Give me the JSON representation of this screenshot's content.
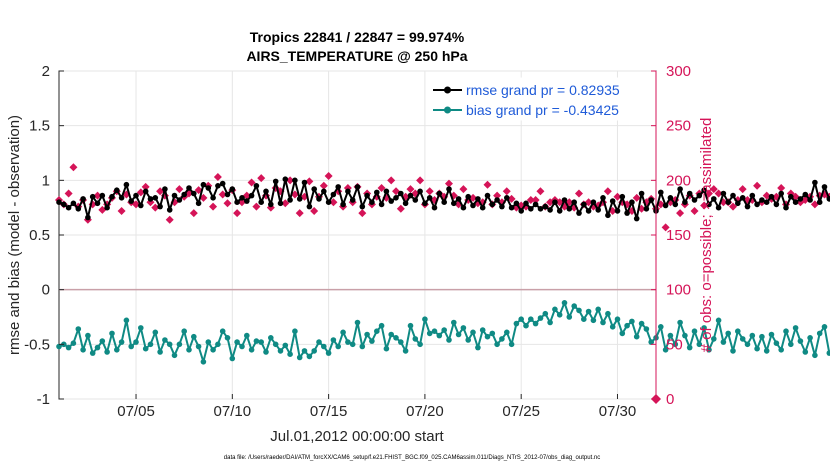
{
  "chart_data": {
    "type": "line",
    "title_line1": "Tropics 22841 / 22847 = 99.974%",
    "title_line2": "AIRS_TEMPERATURE @ 250 hPa",
    "xlabel": "Jul.01,2012 00:00:00 start",
    "ylabel_left": "rmse and bias (model - observation)",
    "ylabel_right": "# of obs: o=possible; ×=assimilated",
    "footer": "data file: /Users/raeder/DAI/ATM_forcXX/CAM6_setup/f.e21.FHIST_BGC.f09_025.CAM6assim.011/Diags_NTrS_2012-07/obs_diag_output.nc",
    "x_range_days": [
      1.0,
      32.0
    ],
    "ylim_left": [
      -1,
      2
    ],
    "ylim_right": [
      0,
      300
    ],
    "yticks_left": [
      "-1",
      "-0.5",
      "0",
      "0.5",
      "1",
      "1.5",
      "2"
    ],
    "yticks_right": [
      "0",
      "50",
      "100",
      "150",
      "200",
      "250",
      "300"
    ],
    "xticks": [
      {
        "day": 5,
        "label": "07/05"
      },
      {
        "day": 10,
        "label": "07/10"
      },
      {
        "day": 15,
        "label": "07/15"
      },
      {
        "day": 20,
        "label": "07/20"
      },
      {
        "day": 25,
        "label": "07/25"
      },
      {
        "day": 30,
        "label": "07/30"
      }
    ],
    "series": [
      {
        "name": "rmse",
        "legend": "rmse grand pr = 0.82935",
        "color": "#000000",
        "values": [
          0.8,
          0.78,
          0.75,
          0.79,
          0.74,
          0.83,
          0.66,
          0.85,
          0.79,
          0.86,
          0.75,
          0.85,
          0.91,
          0.84,
          0.96,
          0.81,
          0.86,
          0.77,
          0.9,
          0.83,
          0.84,
          0.76,
          0.92,
          0.73,
          0.86,
          0.82,
          0.87,
          0.93,
          0.88,
          0.79,
          0.96,
          0.93,
          0.84,
          0.95,
          0.97,
          0.87,
          0.92,
          0.8,
          0.84,
          0.81,
          0.86,
          0.95,
          0.8,
          0.9,
          0.78,
          0.99,
          0.79,
          1.01,
          0.82,
          1.0,
          0.83,
          0.98,
          0.76,
          0.92,
          0.83,
          0.9,
          0.8,
          0.87,
          0.94,
          0.78,
          0.9,
          0.82,
          0.94,
          0.76,
          0.86,
          0.8,
          0.89,
          0.78,
          0.9,
          0.81,
          0.84,
          0.88,
          0.79,
          0.86,
          0.82,
          0.9,
          0.79,
          0.84,
          0.75,
          0.88,
          0.8,
          0.92,
          0.79,
          0.83,
          0.75,
          0.85,
          0.77,
          0.83,
          0.75,
          0.86,
          0.78,
          0.82,
          0.76,
          0.84,
          0.75,
          0.79,
          0.72,
          0.79,
          0.74,
          0.78,
          0.74,
          0.76,
          0.73,
          0.8,
          0.72,
          0.82,
          0.74,
          0.8,
          0.7,
          0.78,
          0.72,
          0.8,
          0.73,
          0.84,
          0.68,
          0.81,
          0.72,
          0.85,
          0.7,
          0.8,
          0.65,
          0.88,
          0.74,
          0.82,
          0.72,
          0.89,
          0.77,
          0.84,
          0.78,
          0.92,
          0.8,
          0.88,
          0.82,
          0.86,
          0.91,
          0.78,
          0.83,
          0.75,
          0.88,
          0.8,
          0.86,
          0.79,
          0.84,
          0.76,
          0.86,
          0.78,
          0.82,
          0.8,
          0.85,
          0.78,
          0.88,
          0.75,
          0.85,
          0.8,
          0.83,
          0.87,
          0.82,
          0.98,
          0.8,
          0.94,
          0.83,
          0.88,
          0.82
        ],
        "_note": "Sampled at 6-hour intervals starting Jul.01 00Z (x = 1 + 0.25*i days)."
      },
      {
        "name": "bias",
        "legend": "bias grand pr = -0.43425",
        "color": "#0f8a84",
        "values": [
          -0.52,
          -0.5,
          -0.53,
          -0.49,
          -0.36,
          -0.55,
          -0.42,
          -0.58,
          -0.53,
          -0.47,
          -0.57,
          -0.4,
          -0.55,
          -0.48,
          -0.28,
          -0.52,
          -0.48,
          -0.35,
          -0.54,
          -0.5,
          -0.39,
          -0.57,
          -0.46,
          -0.5,
          -0.6,
          -0.5,
          -0.38,
          -0.55,
          -0.43,
          -0.52,
          -0.66,
          -0.48,
          -0.55,
          -0.5,
          -0.38,
          -0.44,
          -0.63,
          -0.48,
          -0.52,
          -0.42,
          -0.55,
          -0.47,
          -0.48,
          -0.57,
          -0.44,
          -0.5,
          -0.56,
          -0.51,
          -0.59,
          -0.38,
          -0.62,
          -0.56,
          -0.61,
          -0.56,
          -0.48,
          -0.52,
          -0.58,
          -0.46,
          -0.52,
          -0.39,
          -0.48,
          -0.5,
          -0.3,
          -0.52,
          -0.41,
          -0.47,
          -0.38,
          -0.33,
          -0.54,
          -0.41,
          -0.44,
          -0.48,
          -0.56,
          -0.33,
          -0.45,
          -0.5,
          -0.27,
          -0.4,
          -0.38,
          -0.42,
          -0.37,
          -0.46,
          -0.3,
          -0.41,
          -0.35,
          -0.46,
          -0.39,
          -0.53,
          -0.37,
          -0.43,
          -0.4,
          -0.5,
          -0.45,
          -0.39,
          -0.5,
          -0.31,
          -0.27,
          -0.33,
          -0.27,
          -0.31,
          -0.26,
          -0.22,
          -0.3,
          -0.18,
          -0.23,
          -0.12,
          -0.25,
          -0.15,
          -0.19,
          -0.27,
          -0.2,
          -0.28,
          -0.18,
          -0.3,
          -0.22,
          -0.34,
          -0.27,
          -0.4,
          -0.33,
          -0.29,
          -0.43,
          -0.31,
          -0.36,
          -0.48,
          -0.44,
          -0.34,
          -0.55,
          -0.42,
          -0.5,
          -0.3,
          -0.42,
          -0.53,
          -0.38,
          -0.5,
          -0.35,
          -0.55,
          -0.45,
          -0.28,
          -0.48,
          -0.4,
          -0.56,
          -0.38,
          -0.45,
          -0.5,
          -0.42,
          -0.54,
          -0.43,
          -0.56,
          -0.41,
          -0.49,
          -0.55,
          -0.38,
          -0.5,
          -0.35,
          -0.47,
          -0.57,
          -0.44,
          -0.6,
          -0.4,
          -0.34,
          -0.58,
          -0.62,
          -0.3,
          -0.55,
          -0.64,
          -0.35,
          -0.6,
          -0.45,
          -0.4
        ]
      },
      {
        "name": "obs_assimilated",
        "axis": "right",
        "color": "#d51458",
        "values": [
          182,
          178,
          188,
          212,
          176,
          182,
          164,
          178,
          186,
          173,
          178,
          184,
          190,
          172,
          187,
          180,
          178,
          189,
          194,
          180,
          175,
          190,
          186,
          164,
          180,
          192,
          185,
          188,
          170,
          191,
          184,
          195,
          176,
          203,
          187,
          179,
          191,
          170,
          180,
          186,
          198,
          176,
          202,
          186,
          175,
          193,
          190,
          179,
          200,
          187,
          170,
          185,
          199,
          172,
          185,
          195,
          204,
          180,
          190,
          176,
          193,
          180,
          194,
          170,
          188,
          178,
          185,
          193,
          184,
          200,
          190,
          174,
          185,
          192,
          188,
          200,
          178,
          190,
          182,
          188,
          185,
          197,
          186,
          178,
          192,
          182,
          184,
          179,
          180,
          196,
          178,
          186,
          180,
          190,
          183,
          175,
          177,
          176,
          182,
          182,
          190,
          176,
          180,
          182,
          180,
          176,
          180,
          175,
          188,
          178,
          180,
          176,
          177,
          180,
          190,
          172,
          185,
          180,
          178,
          172,
          184,
          174,
          180,
          183,
          174,
          178,
          157,
          180,
          182,
          170,
          178,
          186,
          172,
          188,
          177,
          188,
          192,
          188,
          180,
          180,
          176,
          182,
          192,
          182,
          182,
          195,
          180,
          186,
          183,
          185,
          193,
          178,
          188,
          185,
          180,
          182,
          185,
          178,
          186,
          187,
          185,
          194,
          185,
          189,
          190
        ]
      }
    ]
  }
}
